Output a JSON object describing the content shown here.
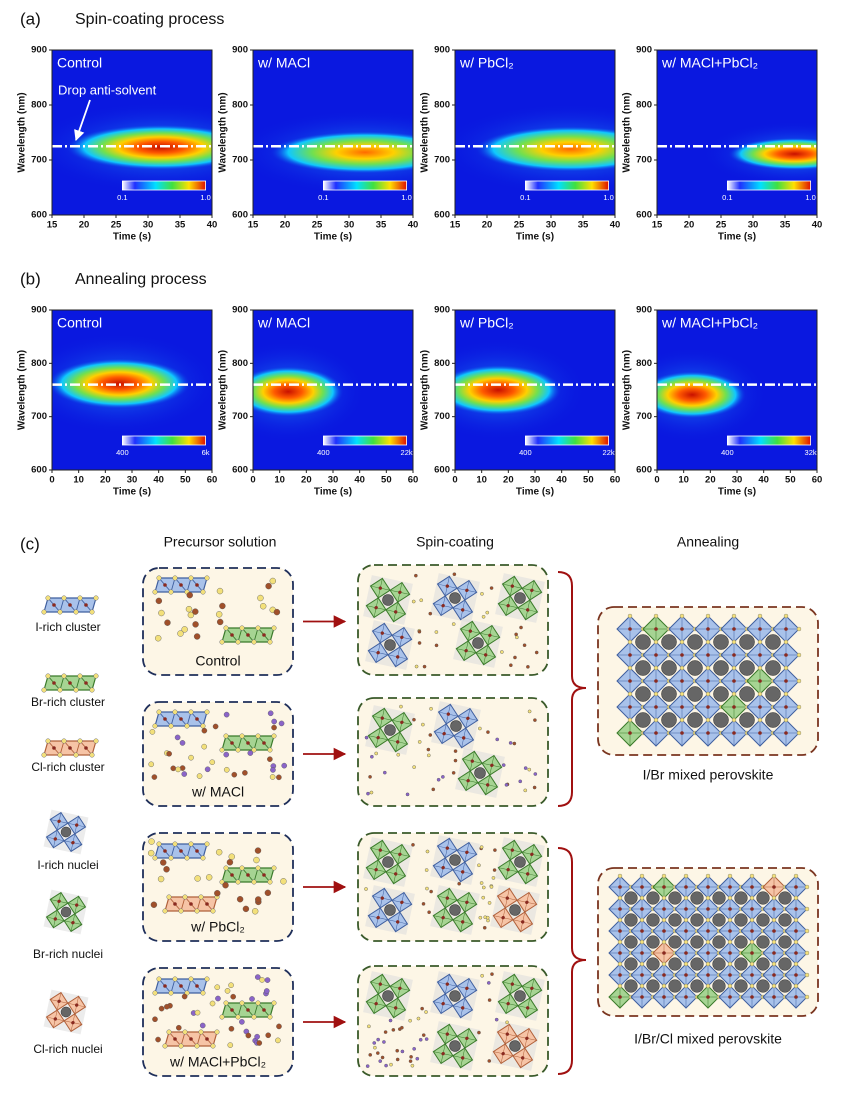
{
  "panel_a": {
    "label": "(a)",
    "title": "Spin-coating process",
    "x_label": "Time (s)",
    "y_label": "Wavelength (nm)",
    "xlim": [
      15,
      40
    ],
    "xticks": [
      15,
      20,
      25,
      30,
      35,
      40
    ],
    "ylim": [
      600,
      900
    ],
    "yticks": [
      600,
      700,
      800,
      900
    ],
    "reference_line": 725,
    "annotation": "Drop anti-solvent",
    "plots": [
      {
        "name": "Control",
        "colorbar_labels": [
          "0.1",
          "1.0"
        ]
      },
      {
        "name": "w/ MACl",
        "colorbar_labels": [
          "0.1",
          "1.0"
        ]
      },
      {
        "name": "w/ PbCl₂",
        "colorbar_labels": [
          "0.1",
          "1.0"
        ]
      },
      {
        "name": "w/ MACl+PbCl₂",
        "colorbar_labels": [
          "0.1",
          "1.0"
        ]
      }
    ]
  },
  "panel_b": {
    "label": "(b)",
    "title": "Annealing process",
    "x_label": "Time (s)",
    "y_label": "Wavelength (nm)",
    "xlim": [
      0,
      60
    ],
    "xticks": [
      0,
      10,
      20,
      30,
      40,
      50,
      60
    ],
    "ylim": [
      600,
      900
    ],
    "yticks": [
      600,
      700,
      800,
      900
    ],
    "reference_line": 760,
    "plots": [
      {
        "name": "Control",
        "colorbar_labels": [
          "400",
          "6k"
        ]
      },
      {
        "name": "w/ MACl",
        "colorbar_labels": [
          "400",
          "22k"
        ]
      },
      {
        "name": "w/ PbCl₂",
        "colorbar_labels": [
          "400",
          "22k"
        ]
      },
      {
        "name": "w/ MACl+PbCl₂",
        "colorbar_labels": [
          "400",
          "32k"
        ]
      }
    ]
  },
  "panel_c": {
    "label": "(c)",
    "headers": [
      "Precursor solution",
      "Spin-coating",
      "Annealing"
    ],
    "legend": [
      "I-rich cluster",
      "Br-rich cluster",
      "Cl-rich cluster",
      "I-rich nuclei",
      "Br-rich nuclei",
      "Cl-rich nuclei"
    ],
    "samples": [
      "Control",
      "w/ MACl",
      "w/ PbCl₂",
      "w/ MACl+PbCl₂"
    ],
    "products": [
      "I/Br mixed perovskite",
      "I/Br/Cl mixed perovskite"
    ]
  }
}
